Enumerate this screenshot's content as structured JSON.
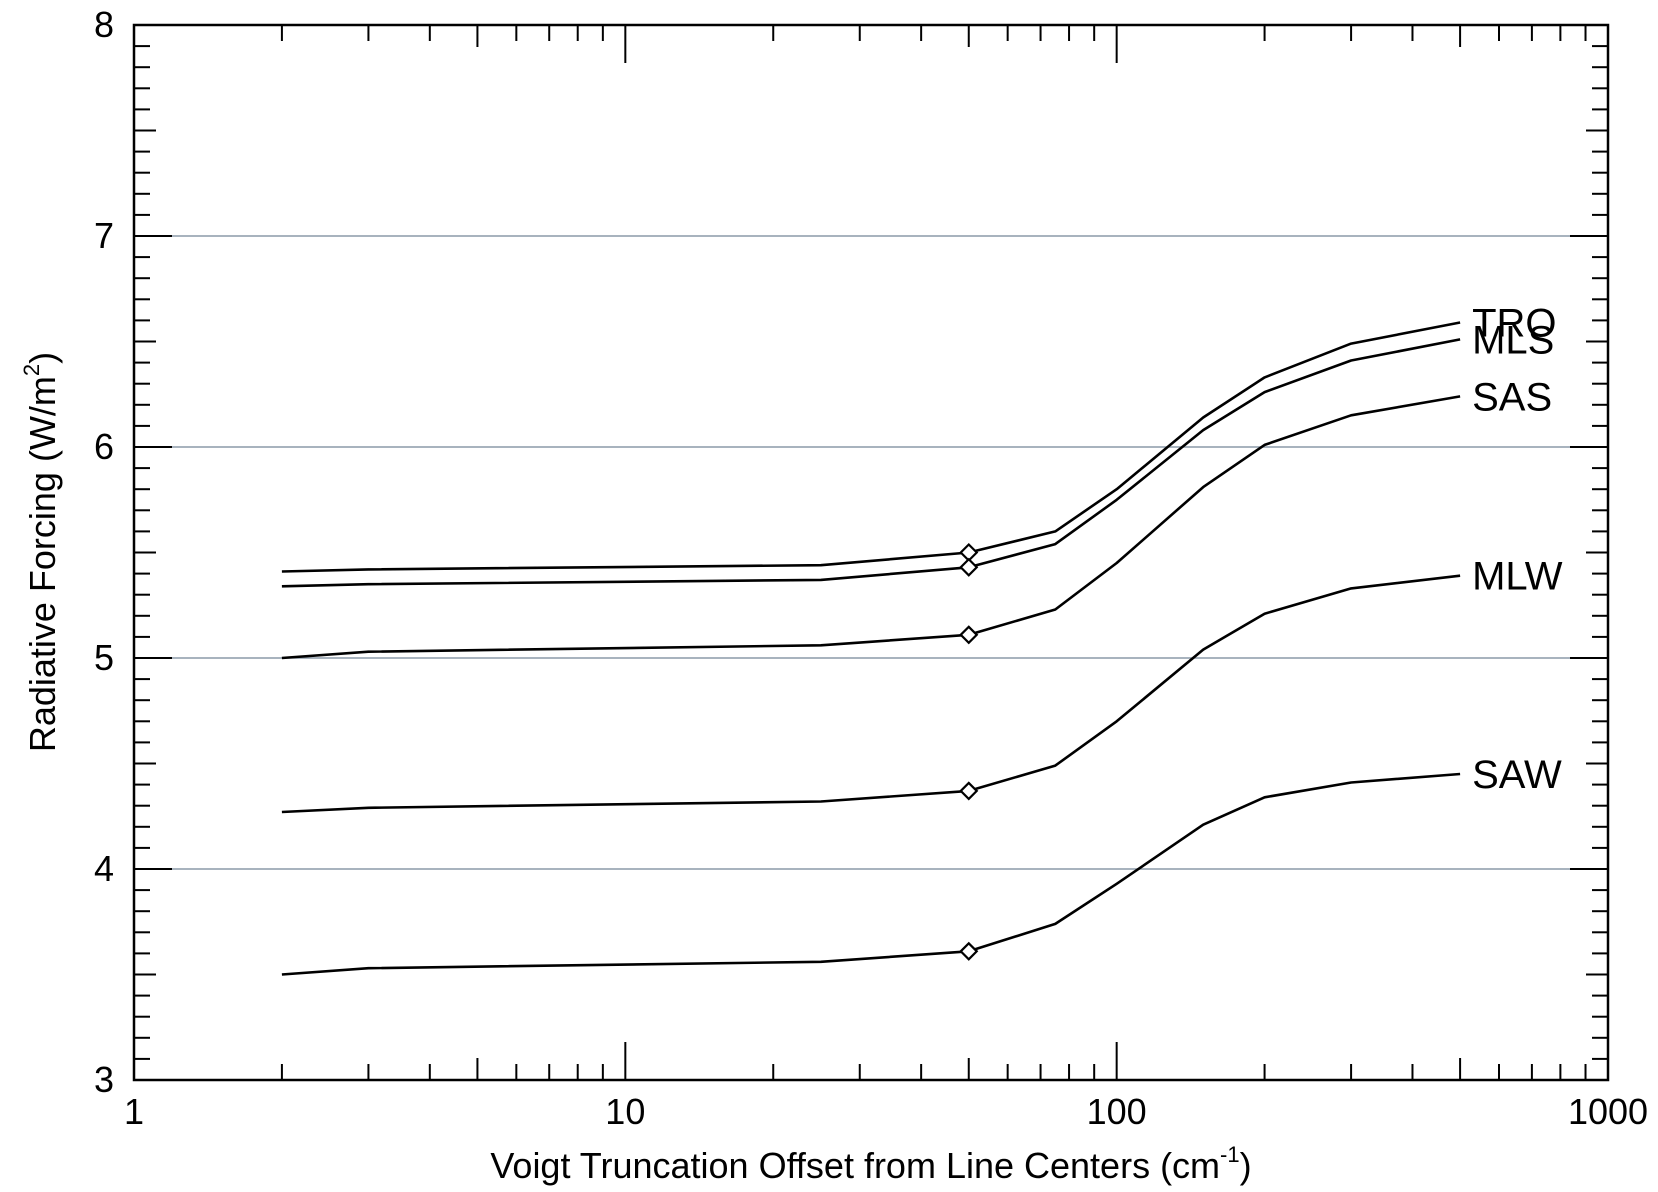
{
  "chart_data": {
    "type": "line",
    "title": "",
    "xlabel": "Voigt Truncation Offset from Line Centers (cm",
    "xlabel_sup": "-1",
    "xlabel_tail": ")",
    "ylabel": "Radiative Forcing (W/m",
    "ylabel_sup": "2",
    "ylabel_tail": ")",
    "xscale": "log",
    "xlim": [
      1,
      1000
    ],
    "ylim": [
      3,
      8
    ],
    "x_ticks": [
      "1",
      "10",
      "100",
      "1000"
    ],
    "y_ticks": [
      "3",
      "4",
      "5",
      "6",
      "7",
      "8"
    ],
    "grid_y": [
      4,
      5,
      6,
      7
    ],
    "grid_color": "#8c9aa8",
    "line_color": "#000000",
    "x": [
      2,
      3,
      25,
      50,
      75,
      100,
      150,
      200,
      300,
      500
    ],
    "series": [
      {
        "name": "TRO",
        "values": [
          5.41,
          5.42,
          5.44,
          5.5,
          5.6,
          5.8,
          6.14,
          6.33,
          6.49,
          6.59
        ]
      },
      {
        "name": "MLS",
        "values": [
          5.34,
          5.35,
          5.37,
          5.43,
          5.54,
          5.75,
          6.08,
          6.26,
          6.41,
          6.51
        ]
      },
      {
        "name": "SAS",
        "values": [
          5.0,
          5.03,
          5.06,
          5.11,
          5.23,
          5.45,
          5.81,
          6.01,
          6.15,
          6.24
        ]
      },
      {
        "name": "MLW",
        "values": [
          4.27,
          4.29,
          4.32,
          4.37,
          4.49,
          4.7,
          5.04,
          5.21,
          5.33,
          5.39
        ]
      },
      {
        "name": "SAW",
        "values": [
          3.5,
          3.53,
          3.56,
          3.61,
          3.74,
          3.93,
          4.21,
          4.34,
          4.41,
          4.45
        ]
      }
    ],
    "marker_x": 50,
    "marker_shape": "diamond"
  }
}
